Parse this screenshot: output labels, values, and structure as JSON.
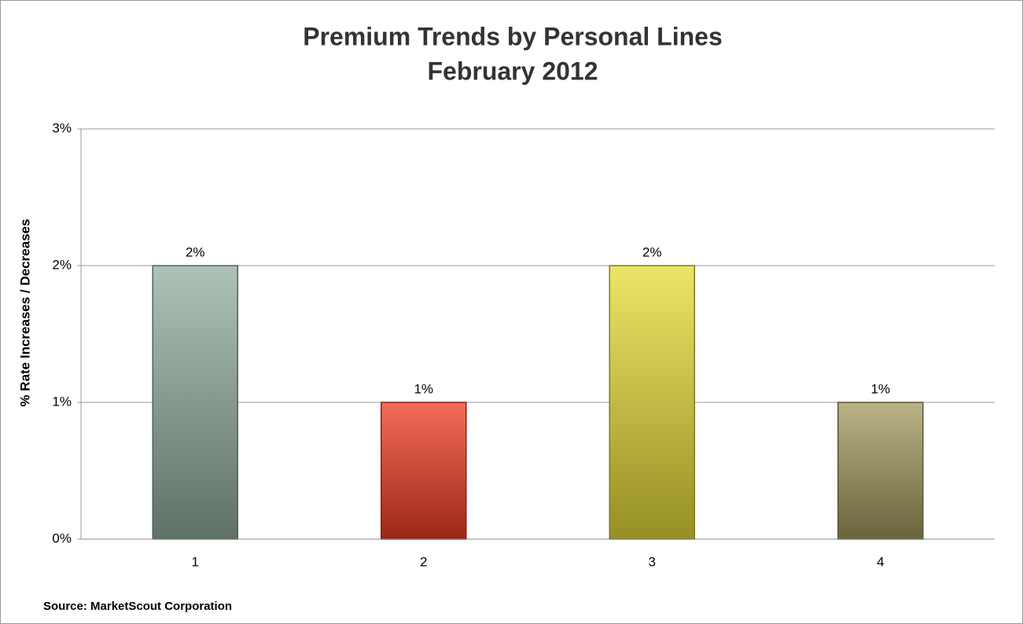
{
  "chart_data": {
    "type": "bar",
    "title": "Premium Trends by Personal Lines",
    "subtitle": "February 2012",
    "y_label": "% Rate Increases / Decreases",
    "annotation": "Source:  MarketScout Corporation",
    "categories": [
      "1",
      "2",
      "3",
      "4"
    ],
    "values": [
      2,
      1,
      2,
      1
    ],
    "value_labels": [
      "2%",
      "1%",
      "2%",
      "1%"
    ],
    "colors": [
      "#93ae9f",
      "#f03c22",
      "#e6dc36",
      "#a39a5e"
    ],
    "ylim": [
      0,
      3
    ],
    "yticks": [
      {
        "value": 0,
        "label": "0%"
      },
      {
        "value": 1,
        "label": "1%"
      },
      {
        "value": 2,
        "label": "2%"
      },
      {
        "value": 3,
        "label": "3%"
      }
    ],
    "grid": true
  }
}
